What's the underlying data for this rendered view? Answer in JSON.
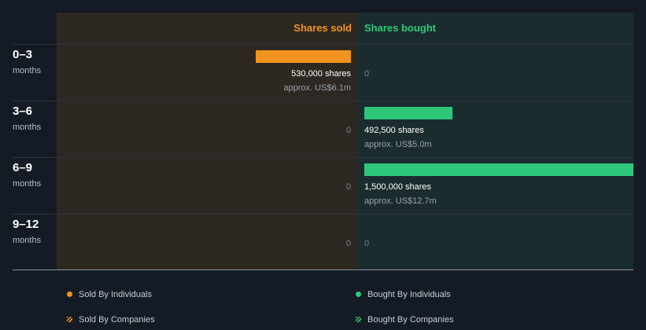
{
  "chart_data": {
    "type": "bar",
    "headers": {
      "sold": "Shares sold",
      "bought": "Shares bought"
    },
    "max_value": 1500000,
    "rows": [
      {
        "range": "0–3",
        "unit": "months",
        "sold": {
          "value": 530000,
          "shares": "530,000 shares",
          "approx": "approx. US$6.1m"
        },
        "bought": {
          "value": 0,
          "text": "0"
        }
      },
      {
        "range": "3–6",
        "unit": "months",
        "sold": {
          "value": 0,
          "text": "0"
        },
        "bought": {
          "value": 492500,
          "shares": "492,500 shares",
          "approx": "approx. US$5.0m"
        }
      },
      {
        "range": "6–9",
        "unit": "months",
        "sold": {
          "value": 0,
          "text": "0"
        },
        "bought": {
          "value": 1500000,
          "shares": "1,500,000 shares",
          "approx": "approx. US$12.7m"
        }
      },
      {
        "range": "9–12",
        "unit": "months",
        "sold": {
          "value": 0,
          "text": "0"
        },
        "bought": {
          "value": 0,
          "text": "0"
        }
      }
    ],
    "legend": [
      {
        "label": "Sold By Individuals",
        "color": "#f3931f",
        "style": "dot"
      },
      {
        "label": "Bought By Individuals",
        "color": "#2ec779",
        "style": "dot"
      },
      {
        "label": "Sold By Companies",
        "color": "#f3931f",
        "style": "hatch"
      },
      {
        "label": "Bought By Companies",
        "color": "#2ec779",
        "style": "hatch"
      }
    ]
  }
}
